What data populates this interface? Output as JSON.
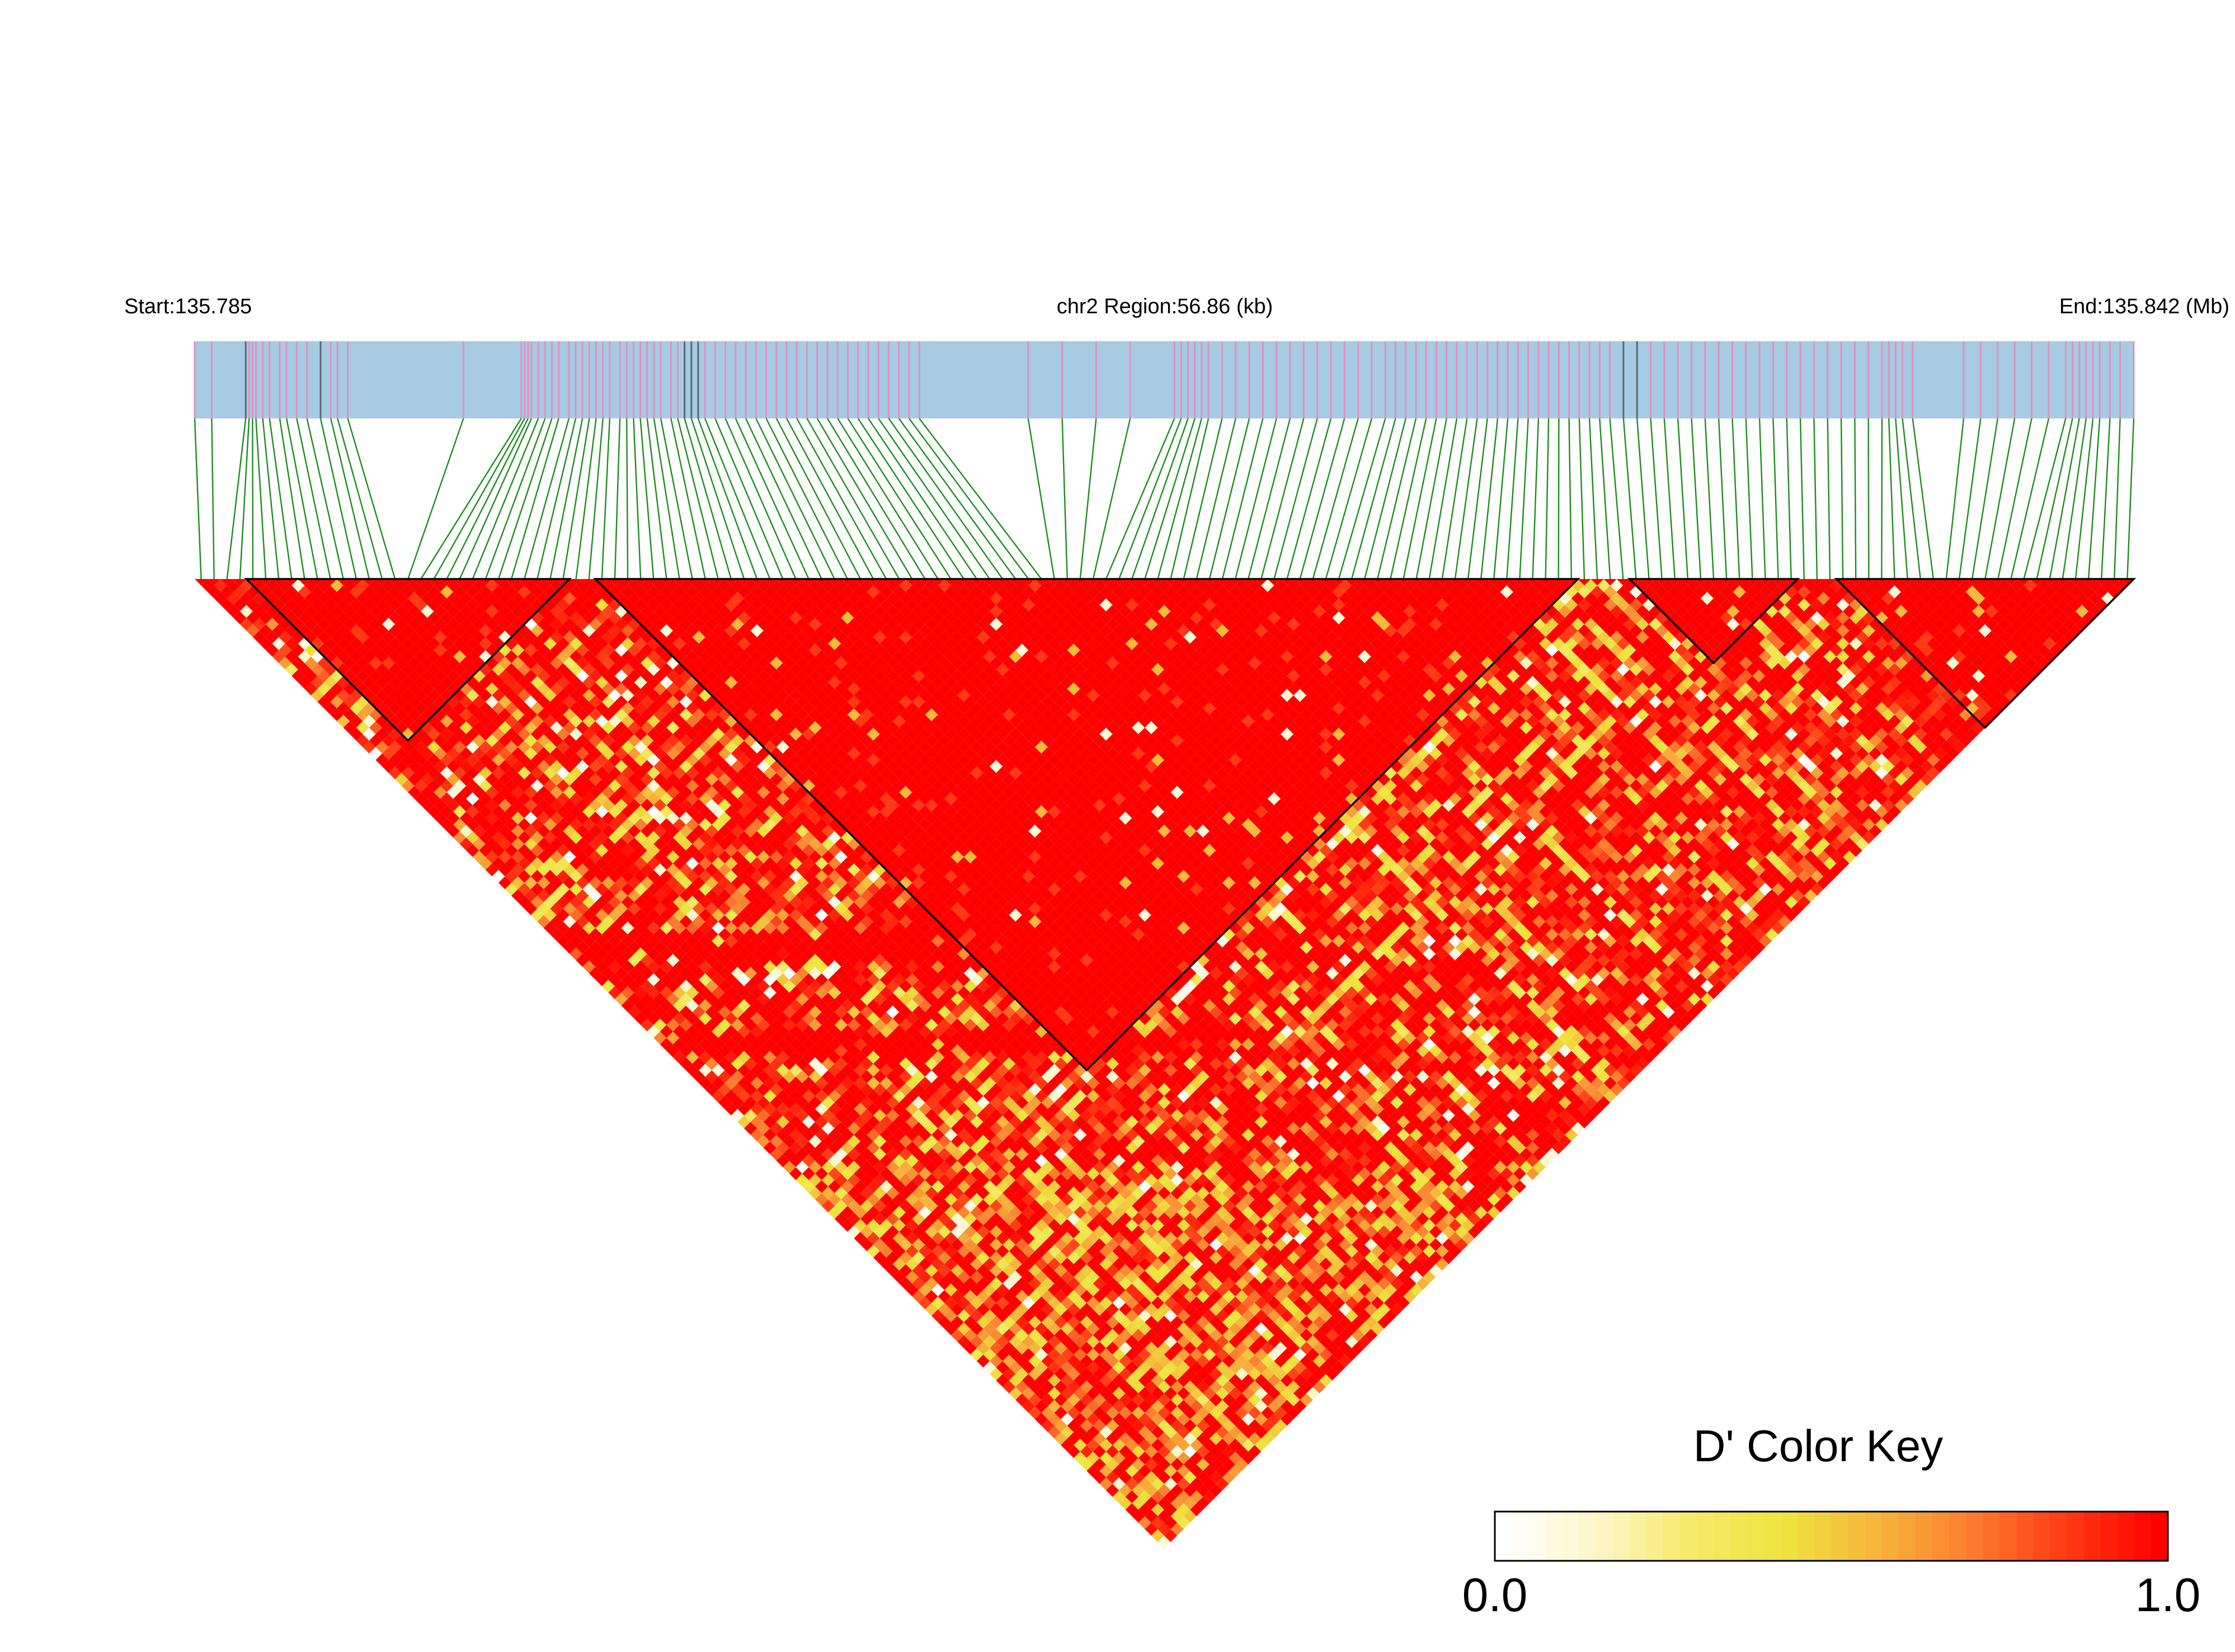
{
  "header": {
    "start_label": "Start:135.785",
    "region_label": "chr2 Region:56.86 (kb)",
    "end_label": "End:135.842 (Mb)"
  },
  "legend": {
    "title": "D' Color Key",
    "min_label": "0.0",
    "max_label": "1.0",
    "gradient_colors": [
      "#ffffff",
      "#fdf6c8",
      "#f6ea6a",
      "#eee43e",
      "#f7b43c",
      "#fb7c30",
      "#ff3a14",
      "#ff0000"
    ],
    "n_steps": 40
  },
  "colors": {
    "track": "#a6cbe3",
    "snp_tick": "#e38fc3",
    "snp_tick_dark": "#5a6a70",
    "connector": "#1e8c1e",
    "block_outline": "#000000"
  },
  "chart_data": {
    "type": "heatmap",
    "description_metric": "D'",
    "chromosome": "chr2",
    "region_start_mb": 135.785,
    "region_end_mb": 135.842,
    "region_length_kb": 56.86,
    "n_snps": 150,
    "value_range": [
      0.0,
      1.0
    ],
    "snp_positions_mb": [
      135.785,
      135.7855,
      135.7865,
      135.7866,
      135.7867,
      135.7868,
      135.787,
      135.7872,
      135.7875,
      135.7877,
      135.788,
      135.7883,
      135.7887,
      135.789,
      135.7892,
      135.7895,
      135.7929,
      135.7946,
      135.7947,
      135.7948,
      135.7949,
      135.7951,
      135.7953,
      135.7955,
      135.7957,
      135.796,
      135.7962,
      135.7964,
      135.7966,
      135.7968,
      135.797,
      135.7972,
      135.7975,
      135.7977,
      135.7979,
      135.7981,
      135.7983,
      135.7985,
      135.7987,
      135.799,
      135.7992,
      135.7994,
      135.7996,
      135.7998,
      135.8,
      135.8003,
      135.8006,
      135.8009,
      135.8012,
      135.8015,
      135.8018,
      135.8021,
      135.8024,
      135.8027,
      135.803,
      135.8033,
      135.8036,
      135.8039,
      135.8042,
      135.8045,
      135.8048,
      135.8051,
      135.8054,
      135.8057,
      135.806,
      135.8063,
      135.8095,
      135.8105,
      135.8115,
      135.8125,
      135.8138,
      135.814,
      135.8142,
      135.8144,
      135.8146,
      135.8148,
      135.8152,
      135.8156,
      135.816,
      135.8164,
      135.8168,
      135.8172,
      135.8176,
      135.818,
      135.8184,
      135.8188,
      135.8192,
      135.8196,
      135.82,
      135.8203,
      135.8206,
      135.8209,
      135.8212,
      135.8215,
      135.8218,
      135.8221,
      135.8224,
      135.8227,
      135.823,
      135.8233,
      135.8236,
      135.8239,
      135.8242,
      135.8245,
      135.8248,
      135.8251,
      135.8254,
      135.8257,
      135.826,
      135.8263,
      135.8266,
      135.827,
      135.8274,
      135.8278,
      135.8282,
      135.8286,
      135.829,
      135.8294,
      135.8298,
      135.8302,
      135.8306,
      135.831,
      135.8314,
      135.8318,
      135.8322,
      135.8326,
      135.833,
      135.8334,
      135.8338,
      135.8342,
      135.8346,
      135.8348,
      135.835,
      135.8352,
      135.8355,
      135.837,
      135.8375,
      135.838,
      135.8385,
      135.839,
      135.8395,
      135.84,
      135.8402,
      135.8404,
      135.8406,
      135.8408,
      135.841,
      135.8413,
      135.8416,
      135.842
    ],
    "dark_snp_indices": [
      2,
      12,
      41,
      42,
      43,
      111,
      112
    ],
    "ld_blocks": [
      {
        "first_snp": 4,
        "last_snp": 28
      },
      {
        "first_snp": 31,
        "last_snp": 106
      },
      {
        "first_snp": 111,
        "last_snp": 123
      },
      {
        "first_snp": 127,
        "last_snp": 149
      }
    ],
    "high_ld_diagonals": [
      {
        "offset": 56,
        "from": 0,
        "to": 40
      },
      {
        "offset": 58,
        "from": 8,
        "to": 60
      },
      {
        "offset": 72,
        "from": 0,
        "to": 40
      }
    ],
    "low_snps": [
      14,
      18,
      22,
      48,
      52,
      58,
      63,
      70,
      75,
      84,
      94,
      100,
      104,
      108,
      116,
      120
    ],
    "rng_seed": 20240517
  }
}
